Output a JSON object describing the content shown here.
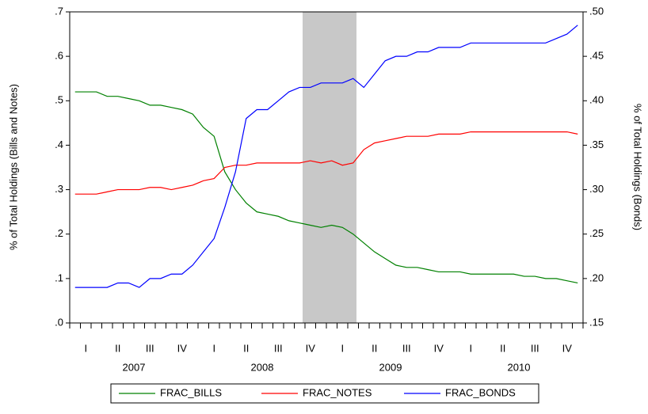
{
  "chart_data": {
    "type": "line",
    "y_label": "% of Total Holdings (Bills and Notes)",
    "y2_label": "% of Total Holdings (Bonds)",
    "categories": [
      null,
      "I",
      null,
      null,
      "II",
      null,
      null,
      "III",
      null,
      null,
      "IV",
      null,
      null,
      "I",
      null,
      null,
      "II",
      null,
      null,
      "III",
      null,
      null,
      "IV",
      null,
      null,
      "I",
      null,
      null,
      "II",
      null,
      null,
      "III",
      null,
      null,
      "IV",
      null,
      null,
      "I",
      null,
      null,
      "II",
      null,
      null,
      "III",
      null,
      null,
      "IV",
      null
    ],
    "x_groups": [
      "2007",
      "2008",
      "2009",
      "2010"
    ],
    "ylim": [
      0,
      0.7
    ],
    "yticks": [
      {
        "value": 0,
        "label": ".0"
      },
      {
        "value": 0.1,
        "label": ".1"
      },
      {
        "value": 0.2,
        "label": ".2"
      },
      {
        "value": 0.3,
        "label": ".3"
      },
      {
        "value": 0.4,
        "label": ".4"
      },
      {
        "value": 0.5,
        "label": ".5"
      },
      {
        "value": 0.6,
        "label": ".6"
      },
      {
        "value": 0.7,
        "label": ".7"
      }
    ],
    "y2lim": [
      0.15,
      0.5
    ],
    "y2ticks": [
      {
        "value": 0.15,
        "label": ".15"
      },
      {
        "value": 0.2,
        "label": ".20"
      },
      {
        "value": 0.25,
        "label": ".25"
      },
      {
        "value": 0.3,
        "label": ".30"
      },
      {
        "value": 0.35,
        "label": ".35"
      },
      {
        "value": 0.4,
        "label": ".40"
      },
      {
        "value": 0.45,
        "label": ".45"
      },
      {
        "value": 0.5,
        "label": ".50"
      }
    ],
    "series": [
      {
        "name": "FRAC_BILLS",
        "color": "#008000",
        "values": [
          0.52,
          0.52,
          0.52,
          0.51,
          0.51,
          0.505,
          0.5,
          0.49,
          0.49,
          0.485,
          0.48,
          0.47,
          0.44,
          0.42,
          0.34,
          0.3,
          0.27,
          0.25,
          0.245,
          0.24,
          0.23,
          0.225,
          0.22,
          0.215,
          0.22,
          0.215,
          0.2,
          0.18,
          0.16,
          0.145,
          0.13,
          0.125,
          0.125,
          0.12,
          0.115,
          0.115,
          0.115,
          0.11,
          0.11,
          0.11,
          0.11,
          0.11,
          0.105,
          0.105,
          0.1,
          0.1,
          0.095,
          0.09
        ]
      },
      {
        "name": "FRAC_NOTES",
        "color": "#ff0000",
        "values": [
          0.29,
          0.29,
          0.29,
          0.295,
          0.3,
          0.3,
          0.3,
          0.305,
          0.305,
          0.3,
          0.305,
          0.31,
          0.32,
          0.325,
          0.35,
          0.355,
          0.355,
          0.36,
          0.36,
          0.36,
          0.36,
          0.36,
          0.365,
          0.36,
          0.365,
          0.355,
          0.36,
          0.39,
          0.405,
          0.41,
          0.415,
          0.42,
          0.42,
          0.42,
          0.425,
          0.425,
          0.425,
          0.43,
          0.43,
          0.43,
          0.43,
          0.43,
          0.43,
          0.43,
          0.43,
          0.43,
          0.43,
          0.425
        ]
      },
      {
        "name": "FRAC_BONDS",
        "color": "#0000ff",
        "axis": "y2",
        "values": [
          0.19,
          0.19,
          0.19,
          0.19,
          0.195,
          0.195,
          0.19,
          0.2,
          0.2,
          0.205,
          0.205,
          0.215,
          0.23,
          0.245,
          0.28,
          0.32,
          0.38,
          0.39,
          0.39,
          0.4,
          0.41,
          0.415,
          0.415,
          0.42,
          0.42,
          0.42,
          0.425,
          0.415,
          0.43,
          0.445,
          0.45,
          0.45,
          0.455,
          0.455,
          0.46,
          0.46,
          0.46,
          0.465,
          0.465,
          0.465,
          0.465,
          0.465,
          0.465,
          0.465,
          0.465,
          0.47,
          0.475,
          0.485
        ]
      }
    ]
  }
}
